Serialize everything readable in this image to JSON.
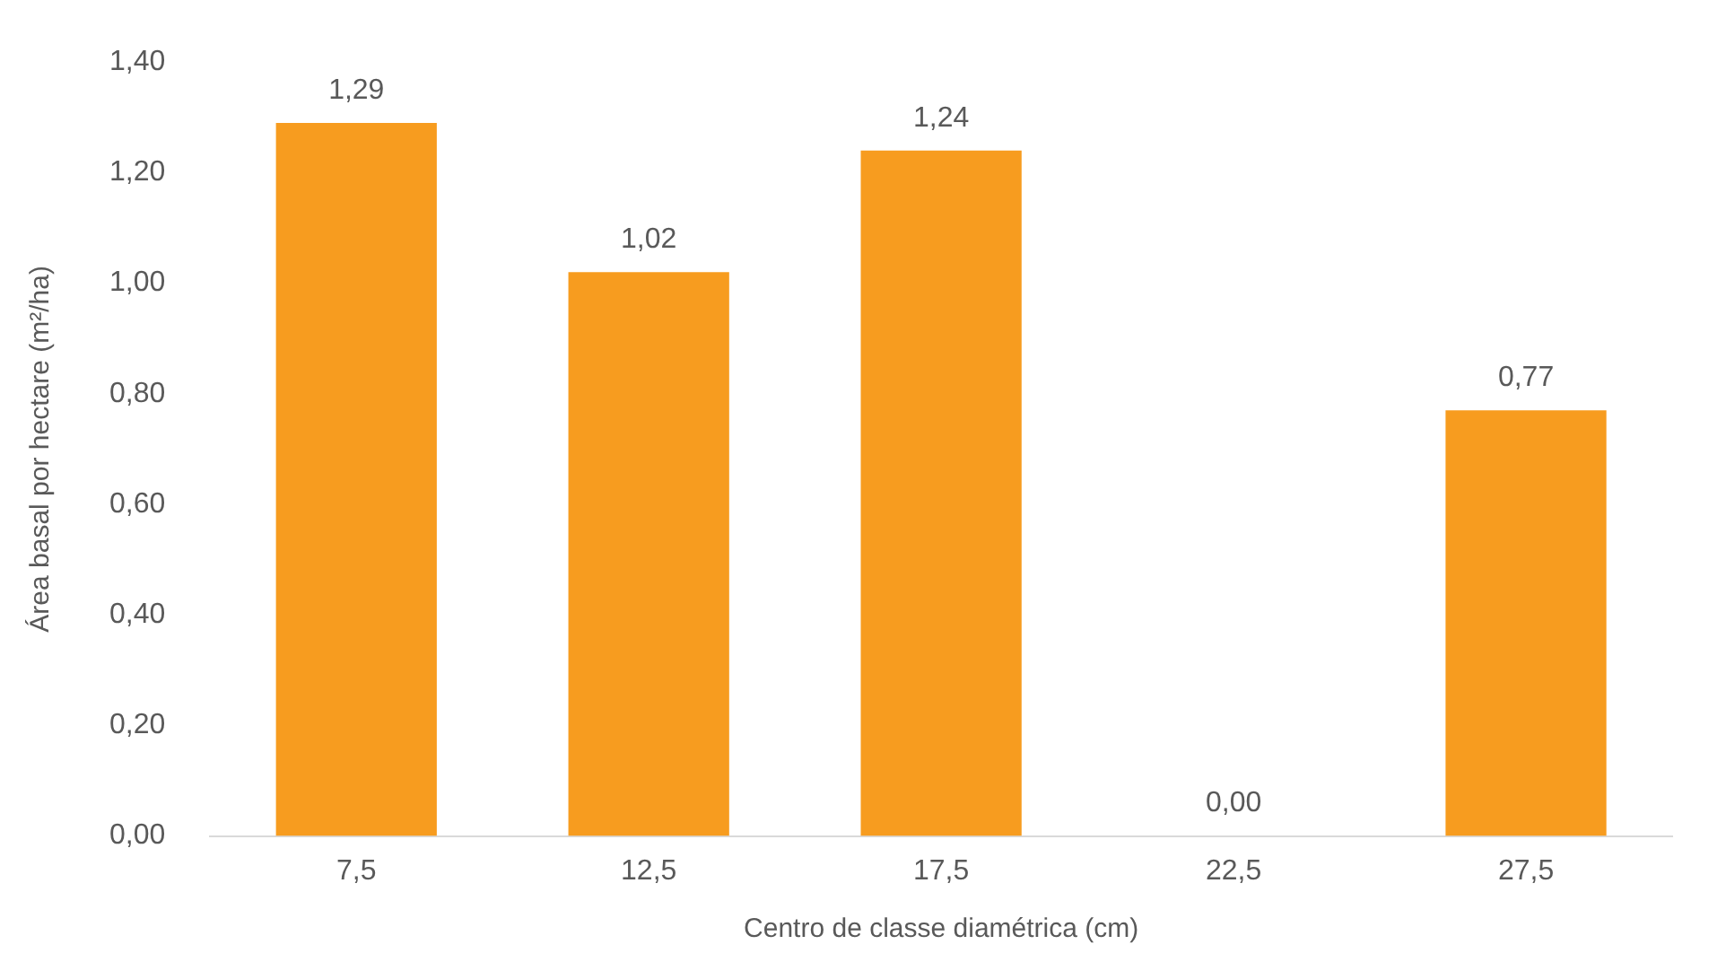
{
  "chart_data": {
    "type": "bar",
    "xlabel": "Centro de classe diamétrica (cm)",
    "ylabel": "Área basal por hectare (m²/ha)",
    "categories": [
      "7,5",
      "12,5",
      "17,5",
      "22,5",
      "27,5"
    ],
    "values": [
      1.29,
      1.02,
      1.24,
      0,
      0.77
    ],
    "value_labels": [
      "1,29",
      "1,02",
      "1,24",
      "0,00",
      "0,77"
    ],
    "color": "#f79c1f",
    "ylim": [
      0,
      1.4
    ],
    "yticks": [
      {
        "value": 0,
        "label": "0,00"
      },
      {
        "value": 0.2,
        "label": "0,20"
      },
      {
        "value": 0.4,
        "label": "0,40"
      },
      {
        "value": 0.6,
        "label": "0,60"
      },
      {
        "value": 0.8,
        "label": "0,80"
      },
      {
        "value": 1,
        "label": "1,00"
      },
      {
        "value": 1.2,
        "label": "1,20"
      },
      {
        "value": 1.4,
        "label": "1,40"
      }
    ],
    "grid": false,
    "legend": false
  }
}
